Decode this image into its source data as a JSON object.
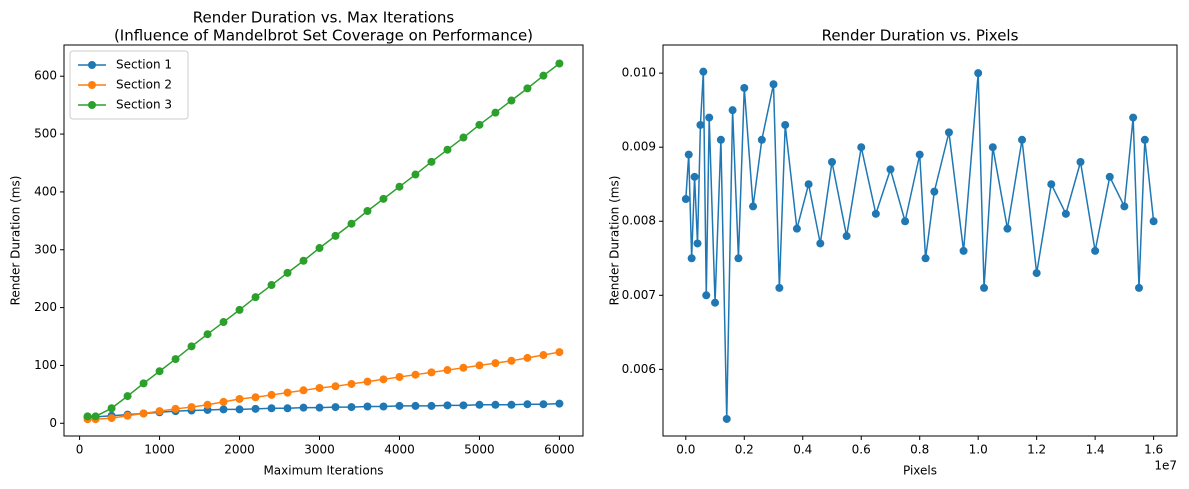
{
  "chart_data": [
    {
      "type": "line",
      "title": "Render Duration vs. Max Iterations",
      "subtitle": "(Influence of Mandelbrot Set Coverage on Performance)",
      "x_label": "Maximum Iterations",
      "y_label": "Render Duration (ms)",
      "legend": "upper left",
      "marker": true,
      "x": [
        100,
        200,
        400,
        600,
        800,
        1000,
        1200,
        1400,
        1600,
        1800,
        2000,
        2200,
        2400,
        2600,
        2800,
        3000,
        3200,
        3400,
        3600,
        3800,
        4000,
        4200,
        4400,
        4600,
        4800,
        5000,
        5200,
        5400,
        5600,
        5800,
        6000
      ],
      "series": [
        {
          "name": "Section 1",
          "color": "#1f77b4",
          "values": [
            10,
            11,
            13,
            15,
            17,
            19,
            21,
            22,
            23,
            24,
            24,
            25,
            26,
            26,
            27,
            27,
            28,
            28,
            29,
            29,
            30,
            30,
            30,
            31,
            31,
            32,
            32,
            32,
            33,
            33,
            34
          ]
        },
        {
          "name": "Section 2",
          "color": "#ff7f0e",
          "values": [
            7,
            7,
            9,
            13,
            17,
            21,
            25,
            28,
            32,
            37,
            42,
            45,
            49,
            53,
            57,
            61,
            64,
            68,
            72,
            76,
            80,
            84,
            88,
            92,
            96,
            100,
            104,
            108,
            113,
            118,
            123
          ]
        },
        {
          "name": "Section 3",
          "color": "#2ca02c",
          "values": [
            12,
            12,
            26,
            47,
            69,
            90,
            111,
            133,
            154,
            175,
            196,
            218,
            239,
            260,
            281,
            303,
            324,
            345,
            367,
            388,
            409,
            430,
            452,
            473,
            494,
            516,
            537,
            558,
            579,
            601,
            622
          ]
        }
      ],
      "xlim": [
        -195,
        6295
      ],
      "xticks": [
        0,
        1000,
        2000,
        3000,
        4000,
        5000,
        6000
      ],
      "ylim": [
        -22,
        654
      ],
      "yticks": [
        0,
        100,
        200,
        300,
        400,
        500,
        600
      ]
    },
    {
      "type": "line",
      "title": "Render Duration vs. Pixels",
      "x_label": "Pixels",
      "y_label": "Render Duration (ms)",
      "x_offset_label": "1e7",
      "marker": true,
      "x": [
        0,
        100000,
        200000,
        300000,
        400000,
        500000,
        600000,
        700000,
        800000,
        1000000,
        1200000,
        1400000,
        1600000,
        1800000,
        2000000,
        2300000,
        2600000,
        3000000,
        3200000,
        3400000,
        3800000,
        4200000,
        4600000,
        5000000,
        5500000,
        6000000,
        6500000,
        7000000,
        7500000,
        8000000,
        8200000,
        8500000,
        9000000,
        9500000,
        10000000,
        10200000,
        10500000,
        11000000,
        11500000,
        12000000,
        12500000,
        13000000,
        13500000,
        14000000,
        14500000,
        15000000,
        15300000,
        15500000,
        15700000,
        16000000
      ],
      "color": "#1f77b4",
      "values": [
        0.0083,
        0.0089,
        0.0075,
        0.0086,
        0.0077,
        0.0093,
        0.01002,
        0.007,
        0.0094,
        0.0069,
        0.0091,
        0.00533,
        0.0095,
        0.0075,
        0.0098,
        0.0082,
        0.0091,
        0.00985,
        0.0071,
        0.0093,
        0.0079,
        0.0085,
        0.0077,
        0.0088,
        0.0078,
        0.009,
        0.0081,
        0.0087,
        0.008,
        0.0089,
        0.0075,
        0.0084,
        0.0092,
        0.0076,
        0.01,
        0.0071,
        0.009,
        0.0079,
        0.0091,
        0.0073,
        0.0085,
        0.0081,
        0.0088,
        0.0076,
        0.0086,
        0.0082,
        0.0094,
        0.0071,
        0.0091,
        0.008
      ],
      "xlim": [
        -780000,
        16800000
      ],
      "xticks": [
        {
          "value": 0,
          "label": "0.0"
        },
        {
          "value": 2000000,
          "label": "0.2"
        },
        {
          "value": 4000000,
          "label": "0.4"
        },
        {
          "value": 6000000,
          "label": "0.6"
        },
        {
          "value": 8000000,
          "label": "0.8"
        },
        {
          "value": 10000000,
          "label": "1.0"
        },
        {
          "value": 12000000,
          "label": "1.2"
        },
        {
          "value": 14000000,
          "label": "1.4"
        },
        {
          "value": 16000000,
          "label": "1.6"
        }
      ],
      "ylim": [
        0.0051,
        0.01038
      ],
      "yticks": [
        0.006,
        0.007,
        0.008,
        0.009,
        {
          "value": 0.01,
          "label": "0.010"
        }
      ]
    }
  ]
}
